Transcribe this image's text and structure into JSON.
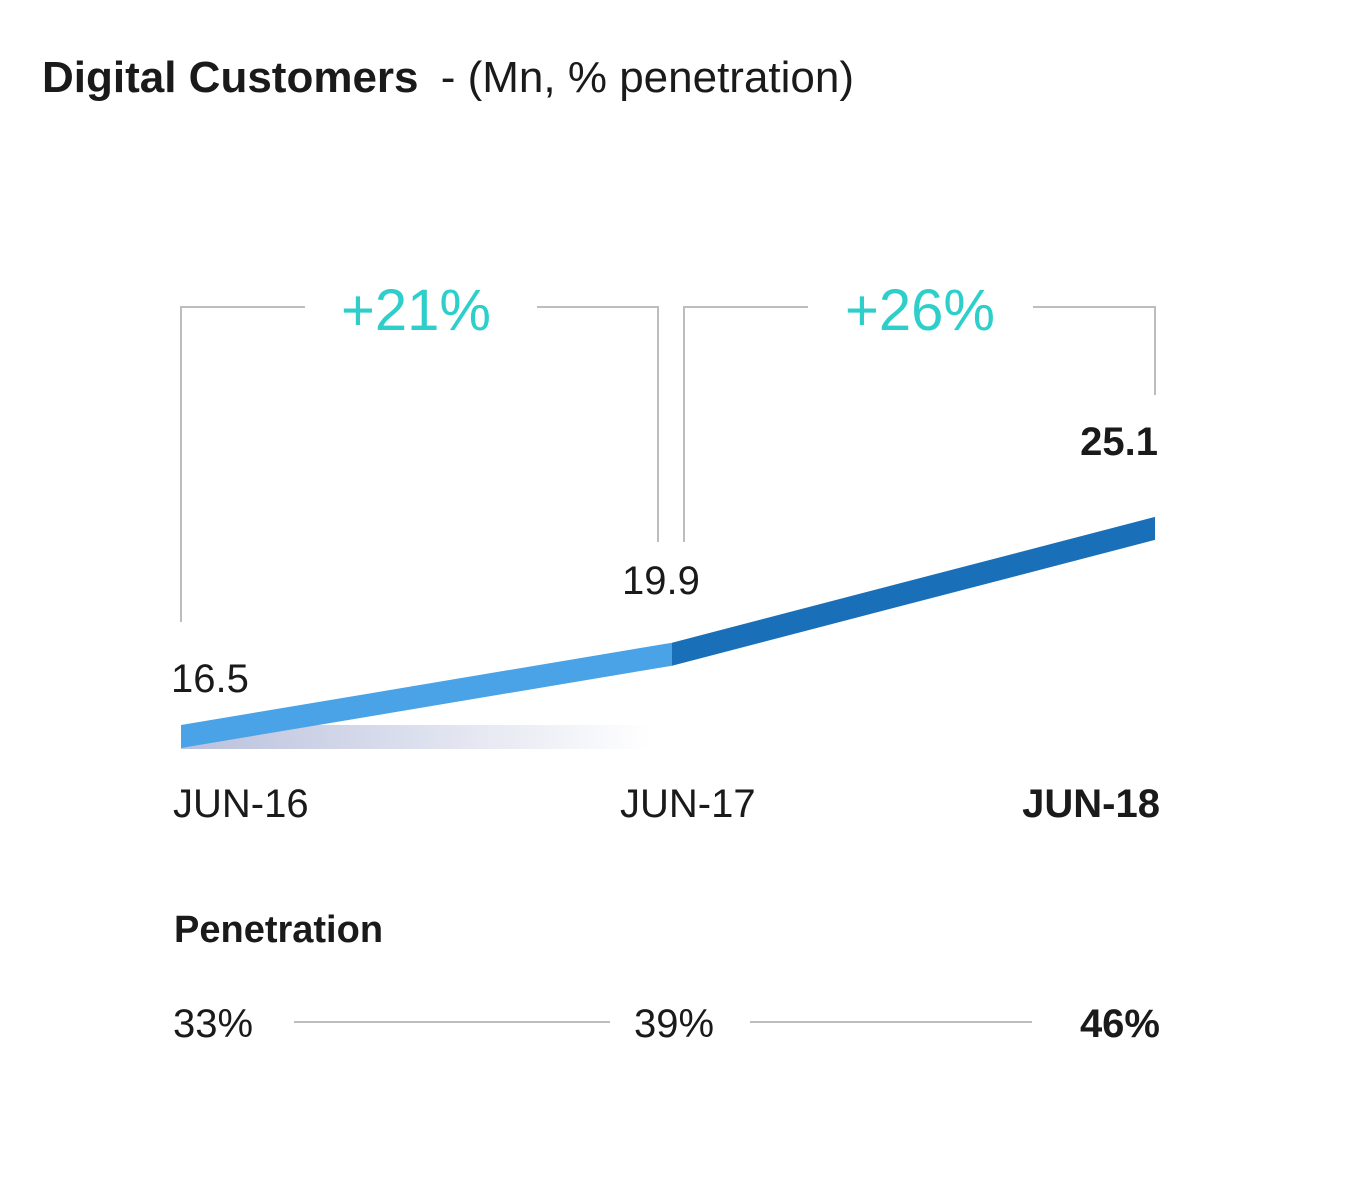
{
  "chart_data": {
    "type": "line",
    "title": "Digital Customers",
    "subtitle": "- (Mn, % penetration)",
    "categories": [
      "JUN-16",
      "JUN-17",
      "JUN-18"
    ],
    "values": [
      16.5,
      19.9,
      25.1
    ],
    "value_labels": [
      "16.5",
      "19.9",
      "25.1"
    ],
    "growth_labels": [
      "+21%",
      "+26%"
    ],
    "penetration_label": "Penetration",
    "penetration_values": [
      "33%",
      "39%",
      "46%"
    ],
    "colors": {
      "line_first": "#4AA3E6",
      "line_second": "#1A70B8",
      "growth": "#2ECFCB",
      "bracket": "#BDBDBD",
      "text": "#1a1a1a"
    }
  }
}
